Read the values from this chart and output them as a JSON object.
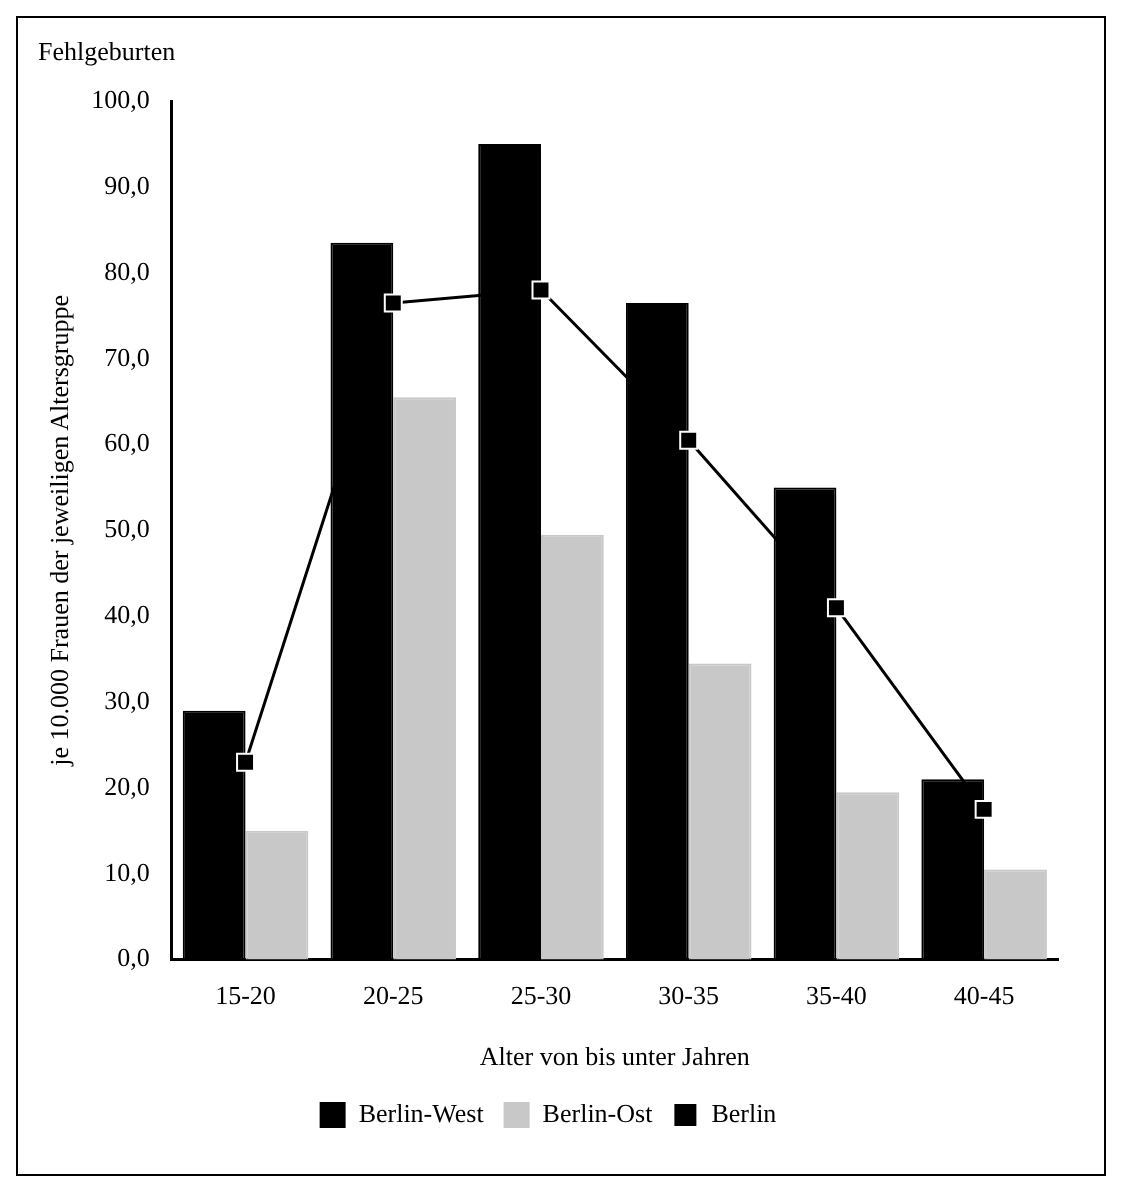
{
  "chart_data": {
    "type": "bar",
    "title": "Fehlgeburten",
    "xlabel": "Alter von bis unter Jahren",
    "ylabel": "je 10.000 Frauen der jeweiligen Altersgruppe",
    "categories": [
      "15-20",
      "20-25",
      "25-30",
      "30-35",
      "35-40",
      "40-45"
    ],
    "series": [
      {
        "name": "Berlin-West",
        "color": "#000000",
        "values": [
          29,
          83.5,
          95,
          76.5,
          55,
          21
        ]
      },
      {
        "name": "Berlin-Ost",
        "color": "#c8c8c8",
        "values": [
          15,
          65.5,
          49.5,
          34.5,
          19.5,
          10.5
        ]
      },
      {
        "name": "Berlin",
        "type": "line",
        "color": "#000000",
        "marker": "square",
        "line_style": "solid",
        "values": [
          23,
          76.5,
          78,
          60.5,
          41,
          17.5
        ]
      }
    ],
    "ylim": [
      0,
      100
    ],
    "yticks": [
      {
        "value": 0,
        "label": "0,0"
      },
      {
        "value": 10,
        "label": "10,0"
      },
      {
        "value": 20,
        "label": "20,0"
      },
      {
        "value": 30,
        "label": "30,0"
      },
      {
        "value": 40,
        "label": "40,0"
      },
      {
        "value": 50,
        "label": "50,0"
      },
      {
        "value": 60,
        "label": "60,0"
      },
      {
        "value": 70,
        "label": "70,0"
      },
      {
        "value": 80,
        "label": "80,0"
      },
      {
        "value": 90,
        "label": "90,0"
      },
      {
        "value": 100,
        "label": "100,0"
      }
    ],
    "grid": false,
    "legend": "bottom"
  }
}
